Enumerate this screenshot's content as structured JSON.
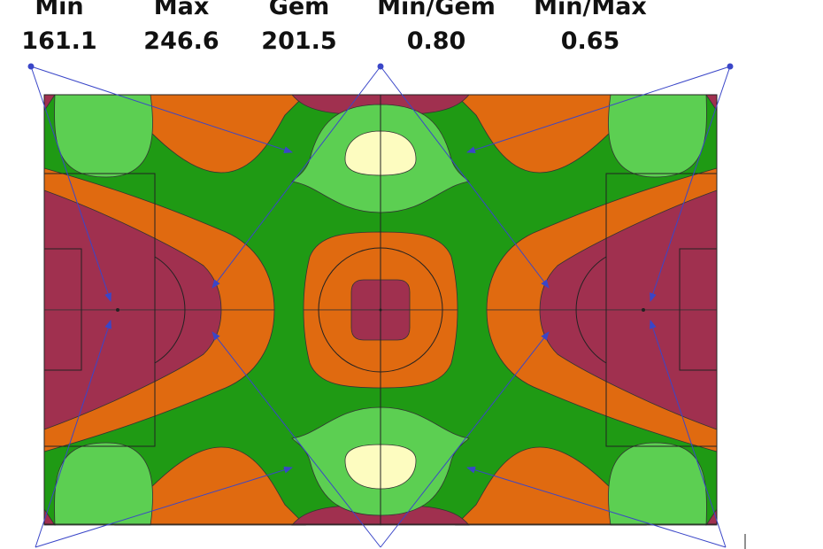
{
  "header": {
    "labels": [
      "Min",
      "Max",
      "Gem",
      "Min/Gem",
      "Min/Max"
    ],
    "values": [
      "161.1",
      "246.6",
      "201.5",
      "0.80",
      "0.65"
    ]
  }
}
